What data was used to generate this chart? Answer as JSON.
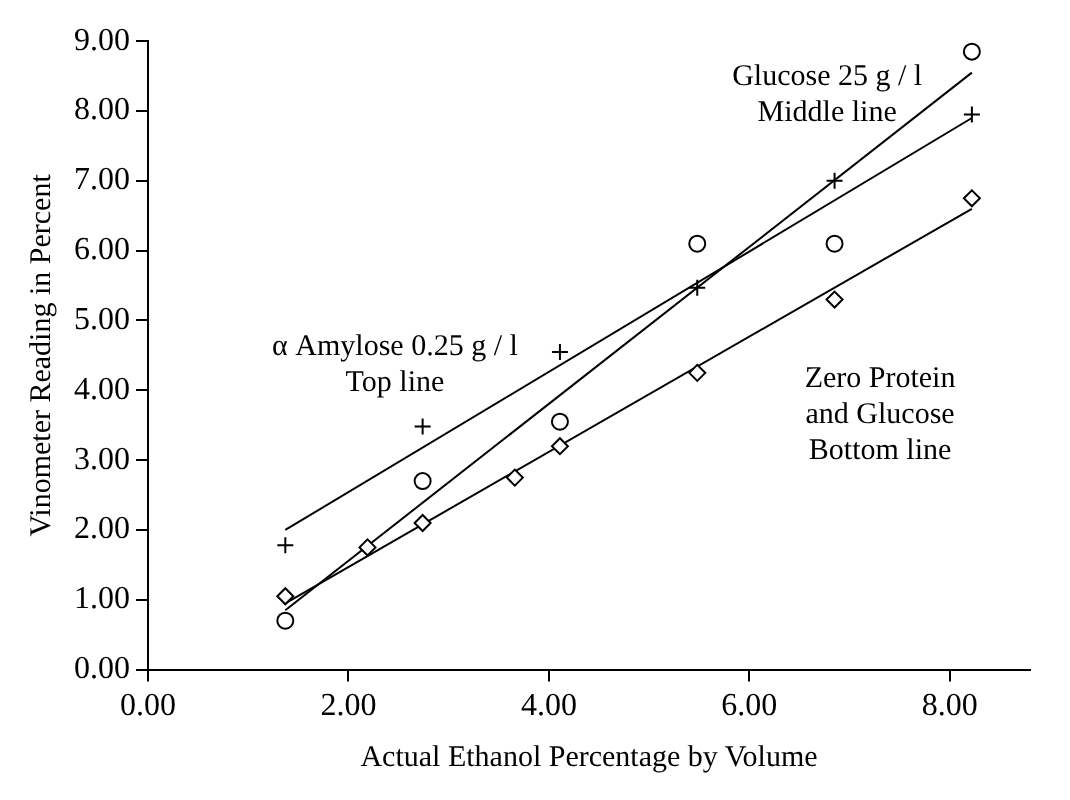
{
  "chart_data": {
    "type": "scatter",
    "xlabel": "Actual Ethanol Percentage by Volume",
    "ylabel": "Vinometer Reading in Percent",
    "xlim": [
      0,
      8.8
    ],
    "ylim": [
      0,
      9
    ],
    "xticks": [
      {
        "value": 0,
        "label": "0.00"
      },
      {
        "value": 2,
        "label": "2.00"
      },
      {
        "value": 4,
        "label": "4.00"
      },
      {
        "value": 6,
        "label": "6.00"
      },
      {
        "value": 8,
        "label": "8.00"
      }
    ],
    "yticks": [
      {
        "value": 0,
        "label": "0.00"
      },
      {
        "value": 1,
        "label": "1.00"
      },
      {
        "value": 2,
        "label": "2.00"
      },
      {
        "value": 3,
        "label": "3.00"
      },
      {
        "value": 4,
        "label": "4.00"
      },
      {
        "value": 5,
        "label": "5.00"
      },
      {
        "value": 6,
        "label": "6.00"
      },
      {
        "value": 7,
        "label": "7.00"
      },
      {
        "value": 8,
        "label": "8.00"
      },
      {
        "value": 9,
        "label": "9.00"
      }
    ],
    "grid": false,
    "legend": false,
    "series": [
      {
        "type": "scatter",
        "marker": "cross",
        "color": "#000000",
        "x": [
          1.37,
          2.74,
          4.11,
          5.48,
          6.85,
          8.22
        ],
        "values": [
          1.78,
          3.48,
          4.55,
          5.47,
          7.0,
          7.95
        ]
      },
      {
        "type": "scatter",
        "marker": "circle",
        "color": "#000000",
        "x": [
          1.37,
          2.74,
          4.11,
          5.48,
          6.85,
          8.22
        ],
        "values": [
          0.7,
          2.7,
          3.55,
          6.1,
          6.1,
          8.85
        ]
      },
      {
        "type": "scatter",
        "marker": "diamond",
        "color": "#000000",
        "x": [
          1.37,
          2.19,
          2.74,
          3.66,
          4.11,
          5.48,
          6.85,
          8.22
        ],
        "values": [
          1.05,
          1.75,
          2.1,
          2.75,
          3.2,
          4.25,
          5.3,
          6.75
        ]
      },
      {
        "type": "line",
        "marker": "none",
        "color": "#000000",
        "x": [
          1.37,
          8.22
        ],
        "values": [
          2.0,
          7.9
        ]
      },
      {
        "type": "line",
        "marker": "none",
        "color": "#000000",
        "x": [
          1.37,
          8.22
        ],
        "values": [
          0.85,
          8.55
        ]
      },
      {
        "type": "line",
        "marker": "none",
        "color": "#000000",
        "x": [
          1.37,
          8.22
        ],
        "values": [
          0.95,
          6.6
        ]
      }
    ],
    "annotations": [
      "α Amylose 0.25 g / l\nTop line",
      "Glucose 25 g / l\nMiddle line",
      "Zero Protein\nand Glucose\nBottom line"
    ]
  }
}
